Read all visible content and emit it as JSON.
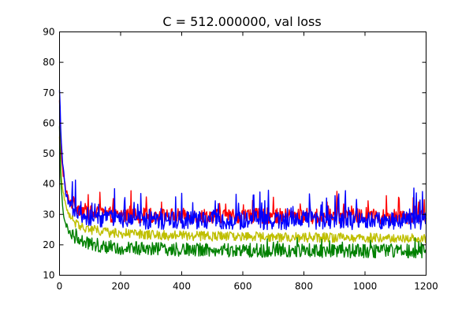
{
  "chart_data": {
    "type": "line",
    "title": "C = 512.000000, val loss",
    "xlabel": "",
    "ylabel": "",
    "xlim": [
      0,
      1200
    ],
    "ylim": [
      10,
      90
    ],
    "xticks": [
      0,
      200,
      400,
      600,
      800,
      1000,
      1200
    ],
    "yticks": [
      10,
      20,
      30,
      40,
      50,
      60,
      70,
      80,
      90
    ],
    "grid": false,
    "legend": "none",
    "series": [
      {
        "color": "#ff0000",
        "x": [
          0,
          5,
          10,
          20,
          30,
          50,
          75,
          100,
          150,
          200,
          300,
          400,
          600,
          800,
          1000,
          1200
        ],
        "y": [
          67,
          52,
          45,
          38,
          35,
          33,
          31.5,
          30.5,
          30,
          29.8,
          29.6,
          29.5,
          29.5,
          29.4,
          29.4,
          29.4
        ],
        "noise": 2.5,
        "spike_prob": 0.06,
        "spike": 6
      },
      {
        "color": "#0000ff",
        "x": [
          0,
          5,
          10,
          20,
          30,
          50,
          75,
          100,
          150,
          200,
          300,
          400,
          600,
          800,
          1000,
          1200
        ],
        "y": [
          70,
          55,
          46,
          38,
          34,
          31.5,
          30,
          29,
          28.4,
          28.2,
          28,
          28,
          28,
          28,
          28,
          28
        ],
        "noise": 3.0,
        "spike_prob": 0.09,
        "spike": 9
      },
      {
        "color": "#bfbf00",
        "x": [
          0,
          5,
          10,
          20,
          30,
          50,
          75,
          100,
          150,
          200,
          300,
          400,
          600,
          800,
          1000,
          1200
        ],
        "y": [
          55,
          44,
          38,
          33,
          30,
          27.5,
          26,
          25,
          24.2,
          23.8,
          23.3,
          23,
          22.7,
          22.5,
          22.3,
          22.3
        ],
        "noise": 1.6,
        "spike_prob": 0.0,
        "spike": 0
      },
      {
        "color": "#008000",
        "x": [
          0,
          5,
          10,
          20,
          30,
          50,
          75,
          100,
          150,
          200,
          300,
          400,
          600,
          800,
          1000,
          1200
        ],
        "y": [
          58,
          40,
          32,
          27,
          24.5,
          22.5,
          21.3,
          20.5,
          19.5,
          19,
          18.6,
          18.4,
          18.2,
          18.1,
          18,
          18
        ],
        "noise": 2.3,
        "spike_prob": 0.03,
        "spike": 3
      }
    ]
  }
}
